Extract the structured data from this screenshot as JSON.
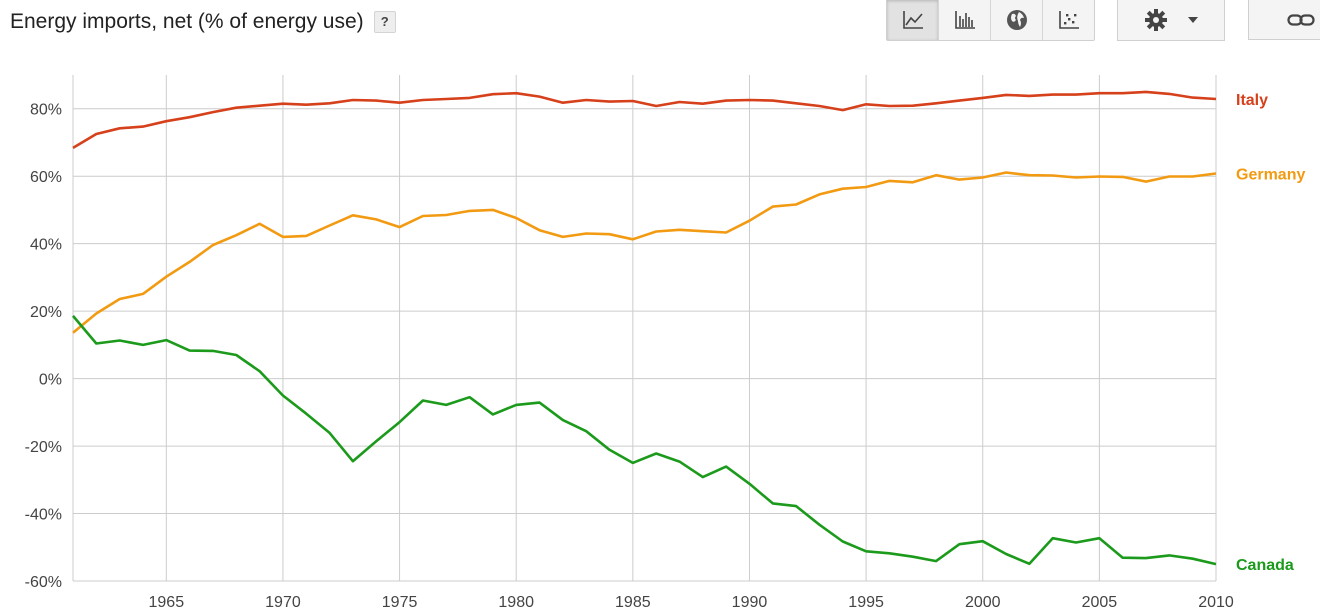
{
  "header": {
    "title": "Energy imports, net (% of energy use)",
    "help_label": "?"
  },
  "toolbar": {
    "chart_types": [
      {
        "name": "line-chart",
        "icon": "line-chart-icon",
        "active": true
      },
      {
        "name": "bar-chart",
        "icon": "bar-chart-icon",
        "active": false
      },
      {
        "name": "map",
        "icon": "globe-icon",
        "active": false
      },
      {
        "name": "scatter",
        "icon": "scatter-icon",
        "active": false
      }
    ],
    "settings_icon": "gear-icon",
    "link_icon": "link-icon"
  },
  "chart_data": {
    "type": "line",
    "title": "Energy imports, net (% of energy use)",
    "xlim": [
      1961,
      2010
    ],
    "ylim": [
      -60,
      90
    ],
    "x_ticks": [
      1965,
      1970,
      1975,
      1980,
      1985,
      1990,
      1995,
      2000,
      2005,
      2010
    ],
    "y_ticks": [
      -60,
      -40,
      -20,
      0,
      20,
      40,
      60,
      80
    ],
    "y_tick_labels": [
      "-60%",
      "-40%",
      "-20%",
      "0%",
      "20%",
      "40%",
      "60%",
      "80%"
    ],
    "grid": true,
    "legend": "right-end-labels",
    "x": [
      1961,
      1962,
      1963,
      1964,
      1965,
      1966,
      1967,
      1968,
      1969,
      1970,
      1971,
      1972,
      1973,
      1974,
      1975,
      1976,
      1977,
      1978,
      1979,
      1980,
      1981,
      1982,
      1983,
      1984,
      1985,
      1986,
      1987,
      1988,
      1989,
      1990,
      1991,
      1992,
      1993,
      1994,
      1995,
      1996,
      1997,
      1998,
      1999,
      2000,
      2001,
      2002,
      2003,
      2004,
      2005,
      2006,
      2007,
      2008,
      2009,
      2010
    ],
    "series": [
      {
        "name": "Italy",
        "color": "#d6401b",
        "values": [
          68.4,
          72.5,
          74.2,
          74.7,
          76.3,
          77.5,
          79.0,
          80.3,
          80.9,
          81.5,
          81.2,
          81.6,
          82.6,
          82.4,
          81.8,
          82.6,
          82.9,
          83.2,
          84.3,
          84.6,
          83.6,
          81.8,
          82.6,
          82.1,
          82.3,
          80.8,
          82.0,
          81.5,
          82.4,
          82.6,
          82.4,
          81.6,
          80.8,
          79.6,
          81.3,
          80.8,
          80.9,
          81.6,
          82.4,
          83.2,
          84.1,
          83.8,
          84.2,
          84.2,
          84.6,
          84.6,
          85.0,
          84.4,
          83.3,
          82.9
        ]
      },
      {
        "name": "Germany",
        "color": "#f29a12",
        "values": [
          13.6,
          19.3,
          23.6,
          25.1,
          30.2,
          34.6,
          39.6,
          42.5,
          45.9,
          42.0,
          42.3,
          45.4,
          48.4,
          47.2,
          44.9,
          48.2,
          48.5,
          49.7,
          50.0,
          47.6,
          44.0,
          42.0,
          43.0,
          42.8,
          41.3,
          43.6,
          44.1,
          43.7,
          43.3,
          46.8,
          51.0,
          51.6,
          54.6,
          56.3,
          56.8,
          58.6,
          58.2,
          60.3,
          59.0,
          59.6,
          61.1,
          60.3,
          60.2,
          59.6,
          59.9,
          59.8,
          58.4,
          59.9,
          59.9,
          60.8
        ]
      },
      {
        "name": "Canada",
        "color": "#1b9a1b",
        "values": [
          18.6,
          10.4,
          11.3,
          10.0,
          11.4,
          8.3,
          8.2,
          7.0,
          2.2,
          -5.0,
          -10.4,
          -16.1,
          -24.5,
          -18.6,
          -12.9,
          -6.5,
          -7.8,
          -5.5,
          -10.6,
          -7.8,
          -7.1,
          -12.3,
          -15.6,
          -21.1,
          -25.0,
          -22.2,
          -24.6,
          -29.2,
          -26.1,
          -31.2,
          -37.0,
          -37.8,
          -43.3,
          -48.3,
          -51.2,
          -51.8,
          -52.8,
          -54.1,
          -49.1,
          -48.2,
          -52.0,
          -54.9,
          -47.3,
          -48.6,
          -47.3,
          -53.1,
          -53.2,
          -52.4,
          -53.4,
          -55.0
        ]
      }
    ]
  }
}
